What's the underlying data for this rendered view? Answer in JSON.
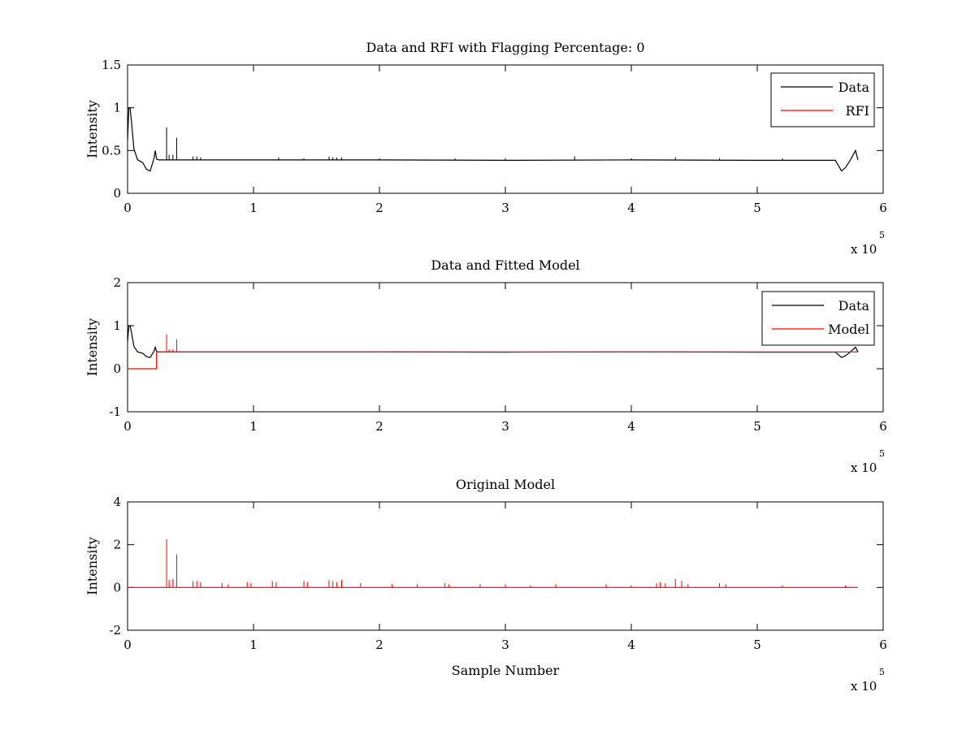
{
  "chart_data": [
    {
      "type": "line",
      "title": "Data and RFI with Flagging Percentage: 0",
      "xlabel": "",
      "ylabel": "Intensity",
      "xlim": [
        0,
        600000
      ],
      "ylim": [
        0,
        1.5
      ],
      "xtick_values": [
        0,
        100000,
        200000,
        300000,
        400000,
        500000,
        600000
      ],
      "xtick_labels": [
        "0",
        "1",
        "2",
        "3",
        "4",
        "5",
        "6"
      ],
      "ytick_values": [
        0,
        0.5,
        1,
        1.5
      ],
      "ytick_labels": [
        "0",
        "0.5",
        "1",
        "1.5"
      ],
      "x_exponent": {
        "base": "x 10",
        "power": "5"
      },
      "legend": {
        "position": "top-right",
        "entries": [
          {
            "label": "Data",
            "color": "#000000"
          },
          {
            "label": "RFI",
            "color": "#ff0000"
          }
        ]
      },
      "series": [
        {
          "name": "Data",
          "color": "#000000",
          "x": [
            0,
            1000,
            2000,
            3000,
            5000,
            8000,
            12000,
            15000,
            18000,
            21000,
            22000,
            23000,
            25000,
            100000,
            200000,
            300000,
            400000,
            500000,
            562000,
            567000,
            570000,
            574000,
            578000,
            580000
          ],
          "y": [
            0.62,
            1.0,
            1.0,
            0.85,
            0.52,
            0.39,
            0.36,
            0.28,
            0.26,
            0.41,
            0.5,
            0.4,
            0.39,
            0.39,
            0.39,
            0.385,
            0.39,
            0.385,
            0.385,
            0.26,
            0.3,
            0.39,
            0.5,
            0.39
          ],
          "spikes": {
            "x": [
              31000,
              33000,
              36000,
              39000,
              52000,
              55000,
              58000,
              120000,
              140000,
              160000,
              163000,
              166000,
              170000,
              200000,
              260000,
              300000,
              355000,
              400000,
              435000,
              470000,
              520000
            ],
            "y": [
              0.77,
              0.45,
              0.45,
              0.65,
              0.43,
              0.43,
              0.42,
              0.42,
              0.41,
              0.43,
              0.42,
              0.42,
              0.42,
              0.41,
              0.41,
              0.41,
              0.43,
              0.41,
              0.42,
              0.41,
              0.41
            ]
          }
        },
        {
          "name": "RFI",
          "color": "#ff0000",
          "x": [
            355000
          ],
          "y": [
            0.44
          ]
        }
      ]
    },
    {
      "type": "line",
      "title": "Data and Fitted Model",
      "xlabel": "",
      "ylabel": "Intensity",
      "xlim": [
        0,
        600000
      ],
      "ylim": [
        -1,
        2
      ],
      "xtick_values": [
        0,
        100000,
        200000,
        300000,
        400000,
        500000,
        600000
      ],
      "xtick_labels": [
        "0",
        "1",
        "2",
        "3",
        "4",
        "5",
        "6"
      ],
      "ytick_values": [
        -1,
        0,
        1,
        2
      ],
      "ytick_labels": [
        "-1",
        "0",
        "1",
        "2"
      ],
      "x_exponent": {
        "base": "x 10",
        "power": "5"
      },
      "legend": {
        "position": "top-right",
        "entries": [
          {
            "label": "Data",
            "color": "#000000"
          },
          {
            "label": "Model",
            "color": "#ff0000"
          }
        ]
      },
      "series": [
        {
          "name": "Data",
          "color": "#000000",
          "x": [
            0,
            1000,
            2000,
            3000,
            5000,
            8000,
            12000,
            15000,
            18000,
            21000,
            22000,
            23000,
            25000,
            100000,
            200000,
            300000,
            400000,
            500000,
            562000,
            567000,
            570000,
            574000,
            578000,
            580000
          ],
          "y": [
            0.62,
            1.0,
            1.0,
            0.85,
            0.52,
            0.39,
            0.36,
            0.28,
            0.26,
            0.41,
            0.5,
            0.4,
            0.39,
            0.39,
            0.39,
            0.385,
            0.39,
            0.385,
            0.385,
            0.26,
            0.3,
            0.39,
            0.5,
            0.39
          ]
        },
        {
          "name": "Model",
          "color": "#ff0000",
          "x": [
            0,
            23000,
            23000,
            580000
          ],
          "y": [
            0.0,
            0.0,
            0.39,
            0.39
          ],
          "spikes": {
            "x": [
              31000,
              33000,
              36000,
              39000
            ],
            "y": [
              0.8,
              0.45,
              0.45,
              0.68
            ]
          }
        }
      ]
    },
    {
      "type": "line",
      "title": "Original Model",
      "xlabel": "Sample Number",
      "ylabel": "Intensity",
      "xlim": [
        0,
        600000
      ],
      "ylim": [
        -2,
        4
      ],
      "xtick_values": [
        0,
        100000,
        200000,
        300000,
        400000,
        500000,
        600000
      ],
      "xtick_labels": [
        "0",
        "1",
        "2",
        "3",
        "4",
        "5",
        "6"
      ],
      "ytick_values": [
        -2,
        0,
        2,
        4
      ],
      "ytick_labels": [
        "-2",
        "0",
        "2",
        "4"
      ],
      "x_exponent": {
        "base": "x 10",
        "power": "5"
      },
      "series": [
        {
          "name": "",
          "color": "#ff0000",
          "x": [
            0,
            580000
          ],
          "y": [
            0,
            0
          ],
          "spikes": {
            "x": [
              31000,
              33000,
              36000,
              39000,
              52000,
              55000,
              58000,
              75000,
              80000,
              95000,
              98000,
              115000,
              118000,
              140000,
              143000,
              160000,
              163000,
              166000,
              170000,
              185000,
              210000,
              230000,
              252000,
              255000,
              280000,
              300000,
              320000,
              340000,
              380000,
              400000,
              420000,
              423000,
              427000,
              435000,
              440000,
              445000,
              470000,
              475000,
              520000,
              570000
            ],
            "y": [
              2.25,
              0.35,
              0.4,
              1.55,
              0.3,
              0.3,
              0.25,
              0.2,
              0.15,
              0.25,
              0.2,
              0.3,
              0.25,
              0.3,
              0.25,
              0.35,
              0.3,
              0.25,
              0.35,
              0.2,
              0.15,
              0.15,
              0.2,
              0.15,
              0.15,
              0.15,
              0.1,
              0.15,
              0.15,
              0.1,
              0.2,
              0.25,
              0.2,
              0.4,
              0.3,
              0.15,
              0.2,
              0.15,
              0.1,
              0.1
            ]
          }
        }
      ]
    }
  ]
}
